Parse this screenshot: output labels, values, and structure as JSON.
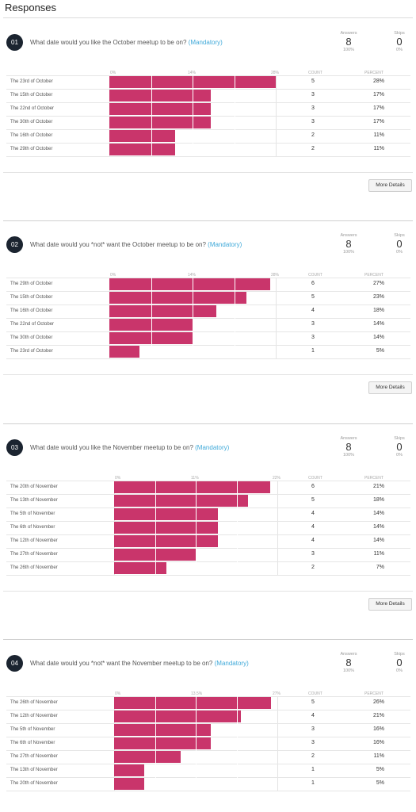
{
  "page": {
    "title": "Responses",
    "more_details_label": "More Details"
  },
  "labels": {
    "answers": "Answers",
    "skips": "Skips",
    "count": "COUNT",
    "percent": "PERCENT"
  },
  "colors": {
    "bar": "#c9356b",
    "badge": "#1b2430",
    "mandatory": "#3fa9d9"
  },
  "questions": [
    {
      "number": "01",
      "text": "What date would you like the October meetup to be on?",
      "mandatory": "(Mandatory)",
      "answers": "8",
      "answers_pct": "100%",
      "skips": "0",
      "skips_pct": "0%",
      "chart_data": {
        "type": "bar",
        "x_ticks": [
          "0%",
          "14%",
          "28%"
        ],
        "xlim": [
          0,
          28
        ],
        "categories": [
          "The 23rd of October",
          "The 15th of October",
          "The 22nd of October",
          "The 30th of October",
          "The 16th of October",
          "The 29th of October"
        ],
        "values": [
          28,
          17,
          17,
          17,
          11,
          11
        ],
        "counts": [
          "5",
          "3",
          "3",
          "3",
          "2",
          "2"
        ],
        "percents": [
          "28%",
          "17%",
          "17%",
          "17%",
          "11%",
          "11%"
        ]
      }
    },
    {
      "number": "02",
      "text": "What date would you *not* want the October meetup to be on?",
      "mandatory": "(Mandatory)",
      "answers": "8",
      "answers_pct": "100%",
      "skips": "0",
      "skips_pct": "0%",
      "chart_data": {
        "type": "bar",
        "x_ticks": [
          "0%",
          "14%",
          "28%"
        ],
        "xlim": [
          0,
          28
        ],
        "categories": [
          "The 29th of October",
          "The 15th of October",
          "The 16th of October",
          "The 22nd of October",
          "The 30th of October",
          "The 23rd of October"
        ],
        "values": [
          27,
          23,
          18,
          14,
          14,
          5
        ],
        "counts": [
          "6",
          "5",
          "4",
          "3",
          "3",
          "1"
        ],
        "percents": [
          "27%",
          "23%",
          "18%",
          "14%",
          "14%",
          "5%"
        ]
      }
    },
    {
      "number": "03",
      "text": "What date would you like the November meetup to be on?",
      "mandatory": "(Mandatory)",
      "answers": "8",
      "answers_pct": "100%",
      "skips": "0",
      "skips_pct": "0%",
      "chart_data": {
        "type": "bar",
        "x_ticks": [
          "0%",
          "11%",
          "22%"
        ],
        "xlim": [
          0,
          22
        ],
        "categories": [
          "The 20th of November",
          "The 13th of November",
          "The 5th of November",
          "The 6th of November",
          "The 12th of November",
          "The 27th of November",
          "The 26th of November"
        ],
        "values": [
          21,
          18,
          14,
          14,
          14,
          11,
          7
        ],
        "counts": [
          "6",
          "5",
          "4",
          "4",
          "4",
          "3",
          "2"
        ],
        "percents": [
          "21%",
          "18%",
          "14%",
          "14%",
          "14%",
          "11%",
          "7%"
        ]
      }
    },
    {
      "number": "04",
      "text": "What date would you *not* want the November meetup to be on?",
      "mandatory": "(Mandatory)",
      "answers": "8",
      "answers_pct": "100%",
      "skips": "0",
      "skips_pct": "0%",
      "chart_data": {
        "type": "bar",
        "x_ticks": [
          "0%",
          "13.5%",
          "27%"
        ],
        "xlim": [
          0,
          27
        ],
        "categories": [
          "The 26th of November",
          "The 12th of November",
          "The 5th of November",
          "The 6th of November",
          "The 27th of November",
          "The 13th of November",
          "The 20th of November"
        ],
        "values": [
          26,
          21,
          16,
          16,
          11,
          5,
          5
        ],
        "counts": [
          "5",
          "4",
          "3",
          "3",
          "2",
          "1",
          "1"
        ],
        "percents": [
          "26%",
          "21%",
          "16%",
          "16%",
          "11%",
          "5%",
          "5%"
        ]
      }
    }
  ]
}
